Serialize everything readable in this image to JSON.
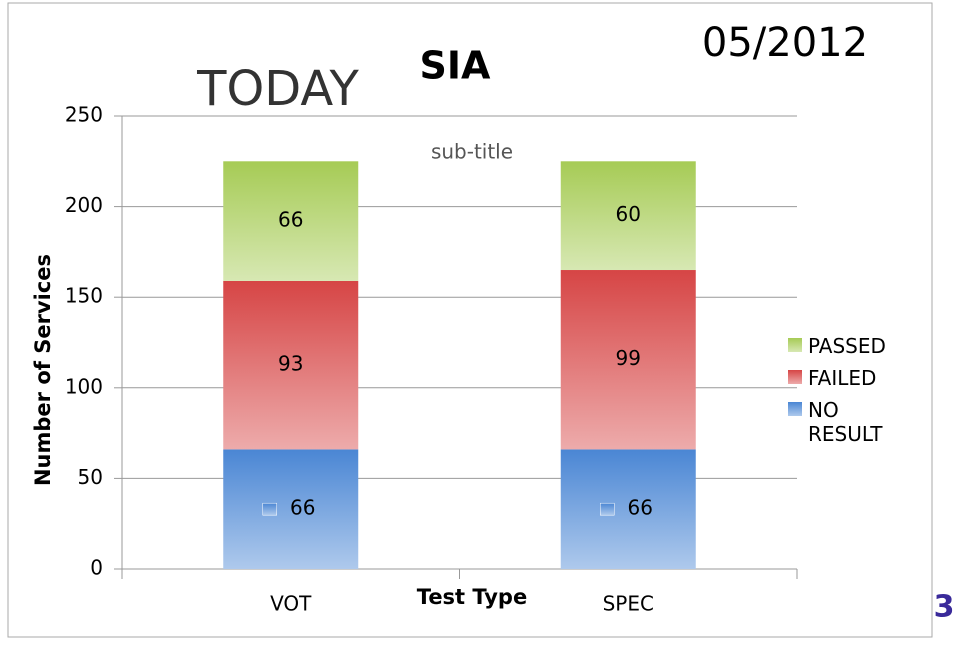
{
  "chart_data": {
    "type": "bar",
    "stacked": true,
    "title": "SIA",
    "heading": "TODAY",
    "date": "05/2012",
    "subtitle": "sub-title",
    "slide_number": "3",
    "x_label": "Test Type",
    "y_label": "Number of Services",
    "categories": [
      "VOT",
      "SPEC"
    ],
    "series": [
      {
        "name": "NO RESULT",
        "color": "#4a86d4",
        "values": [
          66,
          66
        ]
      },
      {
        "name": "FAILED",
        "color": "#d64545",
        "values": [
          93,
          99
        ]
      },
      {
        "name": "PASSED",
        "color": "#a6cb55",
        "values": [
          66,
          60
        ]
      }
    ],
    "ylim": [
      0,
      250
    ],
    "yticks": [
      0,
      50,
      100,
      150,
      200,
      250
    ],
    "grid": true,
    "legend": "right"
  }
}
